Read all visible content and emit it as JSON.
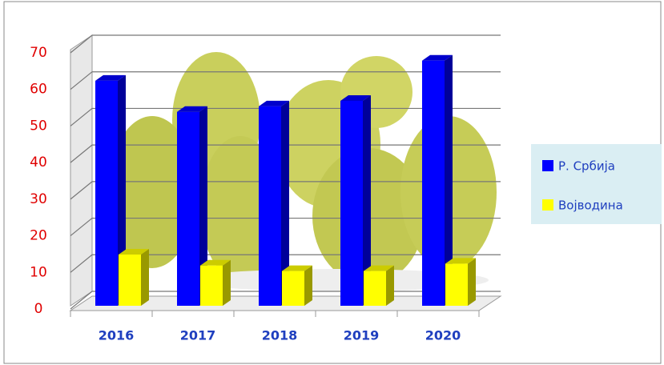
{
  "chart_data": {
    "type": "bar3d",
    "categories": [
      "2016",
      "2017",
      "2018",
      "2019",
      "2020"
    ],
    "series": [
      {
        "name": "Р. Србија",
        "color": "#0000ff",
        "values": [
          61.5,
          53,
          54.5,
          56,
          67
        ]
      },
      {
        "name": "Војводина",
        "color": "#ffff00",
        "values": [
          14,
          11,
          9.5,
          9.5,
          11.5
        ]
      }
    ],
    "ylim": [
      0,
      70
    ],
    "yticks": [
      0,
      10,
      20,
      30,
      40,
      50,
      60,
      70
    ],
    "grid": true
  }
}
